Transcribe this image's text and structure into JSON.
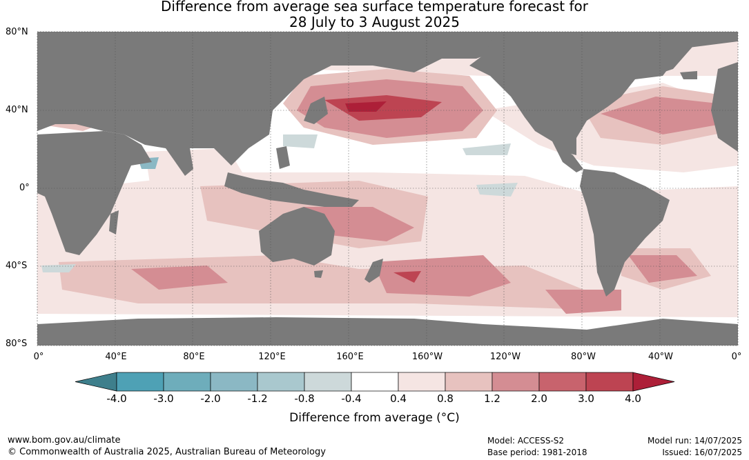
{
  "title_line1": "Difference from average sea surface temperature forecast for",
  "title_line2": "28 July to 3 August 2025",
  "lat_labels": [
    "80°N",
    "40°N",
    "0°",
    "40°S",
    "80°S"
  ],
  "lon_labels": [
    "0°",
    "40°E",
    "80°E",
    "120°E",
    "160°E",
    "160°W",
    "120°W",
    "80°W",
    "40°W",
    "0°"
  ],
  "colorbar": {
    "tick_labels": [
      "-4.0",
      "-3.0",
      "-2.0",
      "-1.2",
      "-0.8",
      "-0.4",
      "0.4",
      "0.8",
      "1.2",
      "2.0",
      "3.0",
      "4.0"
    ],
    "colors": [
      "#3e7f8c",
      "#4ea1b5",
      "#6eadbb",
      "#8bb8c4",
      "#a9c8ce",
      "#cdd9da",
      "#ffffff",
      "#f5e5e3",
      "#e7c2bf",
      "#d48d93",
      "#c8636d",
      "#bd4452",
      "#ad1f38"
    ],
    "label": "Difference from average (°C)"
  },
  "footer": {
    "website": "www.bom.gov.au/climate",
    "copyright": "© Commonwealth of Australia 2025, Australian Bureau of Meteorology",
    "model": "Model: ACCESS-S2",
    "base_period": "Base period: 1981-2018",
    "model_run": "Model run: 14/07/2025",
    "issued": "Issued: 16/07/2025"
  },
  "map": {
    "land_color": "#7a7a7a",
    "ocean_color": "#ffffff",
    "projection": "equirectangular, 0° to 360° longitude",
    "lat_range": [
      -80,
      80
    ]
  }
}
